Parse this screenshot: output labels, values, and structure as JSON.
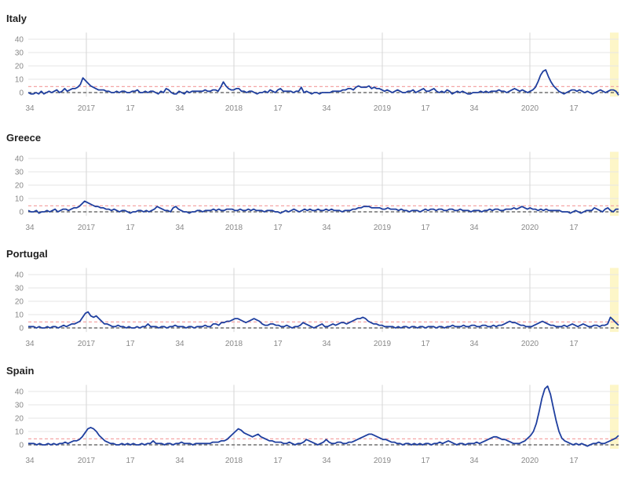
{
  "colors": {
    "series": "#1f3f9f",
    "baseline": "#555555",
    "threshold": "#f4a6a6",
    "grid": "#e6e6e6",
    "year_line": "#d6d6d6",
    "highlight": "#fdf6c8",
    "tick_text": "#888888"
  },
  "chart_data": [
    {
      "type": "line",
      "title": "Italy",
      "yticks": [
        0,
        10,
        20,
        30,
        40
      ],
      "ylim": [
        -3,
        45
      ],
      "xticks": [
        "34",
        "2017",
        "17",
        "34",
        "2018",
        "17",
        "34",
        "2019",
        "17",
        "34",
        "2020",
        "17"
      ],
      "baseline": 0,
      "threshold": 4.5,
      "series": [
        {
          "values": [
            0,
            -1,
            -1,
            0,
            -1,
            1,
            -1,
            0,
            1,
            0,
            1,
            2,
            0,
            1,
            3,
            1,
            2,
            3,
            3,
            4,
            6,
            11,
            9,
            7,
            5,
            4,
            3,
            2,
            2,
            2,
            1,
            1,
            0,
            0,
            1,
            0,
            1,
            1,
            0,
            0,
            1,
            1,
            2,
            0,
            0,
            1,
            0,
            1,
            1,
            0,
            -1,
            1,
            0,
            3,
            2,
            0,
            -1,
            -1,
            1,
            0,
            -1,
            1,
            0,
            1,
            1,
            1,
            1,
            1,
            2,
            1,
            1,
            2,
            2,
            1,
            4,
            8,
            5,
            3,
            2,
            2,
            3,
            3,
            1,
            1,
            0,
            1,
            1,
            0,
            -1,
            0,
            0,
            1,
            0,
            2,
            1,
            0,
            2,
            3,
            1,
            1,
            1,
            1,
            0,
            1,
            1,
            4,
            0,
            1,
            0,
            -1,
            0,
            0,
            -1,
            0,
            0,
            0,
            0,
            1,
            1,
            1,
            1,
            2,
            2,
            3,
            3,
            2,
            4,
            5,
            4,
            4,
            4,
            5,
            3,
            4,
            3,
            3,
            2,
            1,
            2,
            1,
            0,
            1,
            2,
            1,
            0,
            0,
            1,
            1,
            2,
            0,
            1,
            2,
            3,
            1,
            1,
            2,
            3,
            1,
            0,
            1,
            0,
            2,
            1,
            -1,
            0,
            1,
            0,
            1,
            0,
            -1,
            -1,
            0,
            0,
            0,
            1,
            0,
            1,
            0,
            1,
            1,
            1,
            2,
            1,
            1,
            0,
            1,
            2,
            3,
            2,
            1,
            2,
            1,
            0,
            1,
            2,
            4,
            8,
            13,
            16,
            17,
            12,
            8,
            5,
            3,
            1,
            0,
            -1,
            0,
            1,
            2,
            2,
            1,
            2,
            1,
            0,
            1,
            0,
            -1,
            0,
            1,
            2,
            1,
            0,
            1,
            2,
            2,
            1,
            -2
          ]
        }
      ]
    },
    {
      "type": "line",
      "title": "Greece",
      "yticks": [
        0,
        10,
        20,
        30,
        40
      ],
      "ylim": [
        -3,
        45
      ],
      "xticks": [
        "34",
        "2017",
        "17",
        "34",
        "2018",
        "17",
        "34",
        "2019",
        "17",
        "34",
        "2020",
        "17"
      ],
      "baseline": 0,
      "threshold": 4.5,
      "series": [
        {
          "values": [
            1,
            0,
            0,
            1,
            -1,
            0,
            0,
            1,
            0,
            1,
            2,
            0,
            1,
            2,
            2,
            1,
            2,
            3,
            3,
            4,
            6,
            8,
            7,
            6,
            5,
            4,
            4,
            3,
            3,
            2,
            2,
            1,
            2,
            1,
            0,
            1,
            1,
            0,
            -1,
            0,
            0,
            1,
            1,
            0,
            1,
            0,
            1,
            2,
            4,
            3,
            2,
            1,
            1,
            0,
            3,
            4,
            2,
            1,
            0,
            0,
            -1,
            0,
            0,
            1,
            1,
            0,
            1,
            1,
            1,
            2,
            1,
            2,
            1,
            1,
            2,
            2,
            2,
            1,
            1,
            2,
            1,
            1,
            2,
            1,
            2,
            1,
            1,
            1,
            0,
            1,
            1,
            1,
            0,
            0,
            -1,
            0,
            1,
            0,
            1,
            2,
            1,
            0,
            1,
            2,
            1,
            2,
            1,
            1,
            2,
            1,
            1,
            2,
            1,
            2,
            1,
            1,
            1,
            0,
            1,
            1,
            1,
            2,
            2,
            3,
            3,
            4,
            4,
            4,
            3,
            3,
            3,
            3,
            2,
            2,
            3,
            2,
            2,
            2,
            1,
            2,
            1,
            1,
            0,
            1,
            1,
            1,
            0,
            1,
            2,
            1,
            2,
            2,
            1,
            2,
            2,
            1,
            1,
            2,
            2,
            1,
            1,
            2,
            1,
            1,
            1,
            0,
            1,
            1,
            1,
            0,
            1,
            1,
            2,
            1,
            2,
            2,
            1,
            1,
            2,
            2,
            2,
            3,
            2,
            3,
            4,
            3,
            2,
            3,
            2,
            2,
            1,
            2,
            1,
            2,
            1,
            1,
            1,
            1,
            1,
            0,
            0,
            0,
            -1,
            0,
            1,
            0,
            -1,
            0,
            1,
            1,
            1,
            3,
            2,
            1,
            0,
            2,
            3,
            1,
            0,
            2,
            2
          ]
        }
      ]
    },
    {
      "type": "line",
      "title": "Portugal",
      "yticks": [
        0,
        10,
        20,
        30,
        40
      ],
      "ylim": [
        -3,
        45
      ],
      "xticks": [
        "34",
        "2017",
        "17",
        "34",
        "2018",
        "17",
        "34",
        "2019",
        "17",
        "34",
        "2020",
        "17"
      ],
      "baseline": 0,
      "threshold": 4.5,
      "series": [
        {
          "values": [
            1,
            1,
            1,
            0,
            1,
            0,
            0,
            1,
            0,
            1,
            1,
            0,
            1,
            2,
            1,
            2,
            3,
            3,
            4,
            5,
            8,
            11,
            12,
            9,
            8,
            9,
            7,
            5,
            3,
            3,
            2,
            1,
            1,
            2,
            1,
            1,
            0,
            1,
            0,
            0,
            1,
            0,
            1,
            1,
            3,
            1,
            1,
            1,
            0,
            1,
            1,
            0,
            1,
            1,
            2,
            1,
            1,
            1,
            0,
            1,
            1,
            0,
            1,
            1,
            1,
            2,
            1,
            1,
            3,
            3,
            2,
            4,
            4,
            5,
            5,
            6,
            7,
            7,
            6,
            5,
            4,
            5,
            6,
            7,
            6,
            5,
            3,
            2,
            2,
            3,
            3,
            2,
            2,
            1,
            1,
            2,
            1,
            0,
            1,
            1,
            2,
            4,
            3,
            2,
            1,
            0,
            1,
            2,
            3,
            1,
            1,
            2,
            3,
            2,
            3,
            4,
            4,
            3,
            4,
            5,
            6,
            7,
            7,
            8,
            7,
            5,
            4,
            3,
            3,
            2,
            2,
            1,
            1,
            1,
            1,
            0,
            1,
            0,
            1,
            1,
            0,
            1,
            1,
            0,
            1,
            1,
            0,
            1,
            1,
            1,
            0,
            1,
            1,
            0,
            1,
            1,
            2,
            1,
            1,
            1,
            2,
            1,
            1,
            2,
            2,
            1,
            1,
            2,
            2,
            1,
            1,
            2,
            1,
            2,
            2,
            3,
            4,
            5,
            4,
            4,
            3,
            2,
            2,
            1,
            1,
            1,
            2,
            3,
            4,
            5,
            4,
            3,
            2,
            2,
            1,
            1,
            1,
            2,
            1,
            2,
            3,
            2,
            1,
            2,
            3,
            2,
            1,
            1,
            2,
            2,
            1,
            2,
            2,
            3,
            8,
            6,
            4,
            2
          ]
        }
      ]
    },
    {
      "type": "line",
      "title": "Spain",
      "yticks": [
        0,
        10,
        20,
        30,
        40
      ],
      "ylim": [
        -3,
        45
      ],
      "xticks": [
        "34",
        "2017",
        "17",
        "34",
        "2018",
        "17",
        "34",
        "2019",
        "17",
        "34",
        "2020",
        "17"
      ],
      "baseline": 0,
      "threshold": 4.5,
      "series": [
        {
          "values": [
            1,
            1,
            1,
            0,
            1,
            0,
            0,
            1,
            0,
            1,
            0,
            1,
            1,
            2,
            1,
            2,
            3,
            3,
            4,
            6,
            9,
            12,
            13,
            12,
            10,
            7,
            5,
            3,
            2,
            1,
            1,
            0,
            0,
            1,
            0,
            1,
            0,
            1,
            0,
            0,
            1,
            0,
            1,
            1,
            3,
            1,
            1,
            1,
            0,
            1,
            1,
            0,
            1,
            1,
            2,
            1,
            1,
            1,
            0,
            1,
            1,
            1,
            1,
            1,
            1,
            2,
            2,
            2,
            3,
            3,
            4,
            6,
            8,
            10,
            12,
            11,
            9,
            8,
            7,
            6,
            7,
            8,
            6,
            5,
            4,
            3,
            3,
            2,
            2,
            2,
            1,
            1,
            2,
            1,
            0,
            1,
            1,
            2,
            4,
            3,
            2,
            1,
            0,
            1,
            2,
            4,
            2,
            1,
            1,
            2,
            2,
            1,
            1,
            2,
            2,
            3,
            4,
            5,
            6,
            7,
            8,
            8,
            7,
            6,
            5,
            4,
            4,
            3,
            2,
            2,
            1,
            1,
            0,
            1,
            1,
            0,
            1,
            0,
            1,
            0,
            1,
            1,
            0,
            1,
            1,
            2,
            1,
            2,
            3,
            2,
            1,
            0,
            1,
            1,
            0,
            1,
            1,
            1,
            2,
            1,
            2,
            3,
            4,
            5,
            6,
            6,
            5,
            4,
            4,
            3,
            2,
            1,
            1,
            1,
            2,
            3,
            5,
            7,
            10,
            16,
            25,
            35,
            42,
            44,
            38,
            28,
            18,
            10,
            5,
            3,
            2,
            1,
            0,
            1,
            0,
            1,
            0,
            -1,
            0,
            1,
            1,
            2,
            1,
            1,
            2,
            3,
            4,
            5,
            7
          ]
        }
      ]
    }
  ]
}
